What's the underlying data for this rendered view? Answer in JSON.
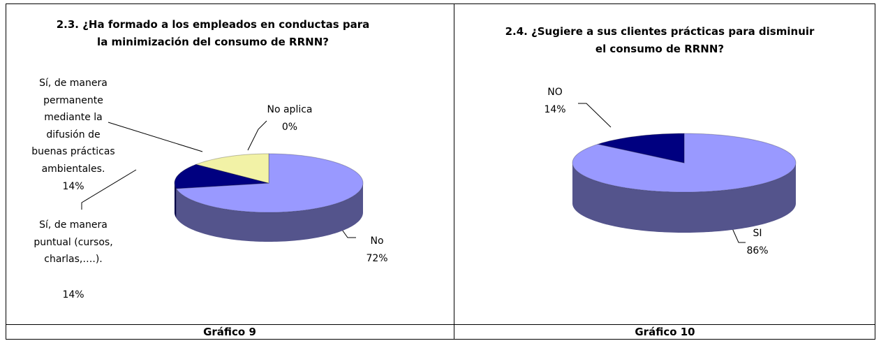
{
  "chart_data": [
    {
      "type": "pie3d",
      "title": "2.3. ¿Ha formado a los empleados en conductas para la minimización del consumo de RRNN?",
      "categories": [
        "No",
        "Sí, de manera puntual (cursos, charlas,….).",
        "Sí, de manera permanente mediante la difusión de buenas prácticas ambientales.",
        "No aplica"
      ],
      "values": [
        72,
        14,
        14,
        0
      ],
      "value_labels": [
        "72%",
        "14%",
        "14%",
        "0%"
      ],
      "colors": [
        "#9999ff",
        "#000080",
        "#f2f2a6",
        "#ffffff"
      ]
    },
    {
      "type": "pie3d",
      "title": "2.4. ¿Sugiere a sus clientes prácticas para disminuir el consumo de RRNN?",
      "categories": [
        "SI",
        "NO"
      ],
      "values": [
        86,
        14
      ],
      "value_labels": [
        "86%",
        "14%"
      ],
      "colors": [
        "#9999ff",
        "#000080"
      ]
    }
  ],
  "captions": [
    "Gráfico 9",
    "Gráfico 10"
  ]
}
